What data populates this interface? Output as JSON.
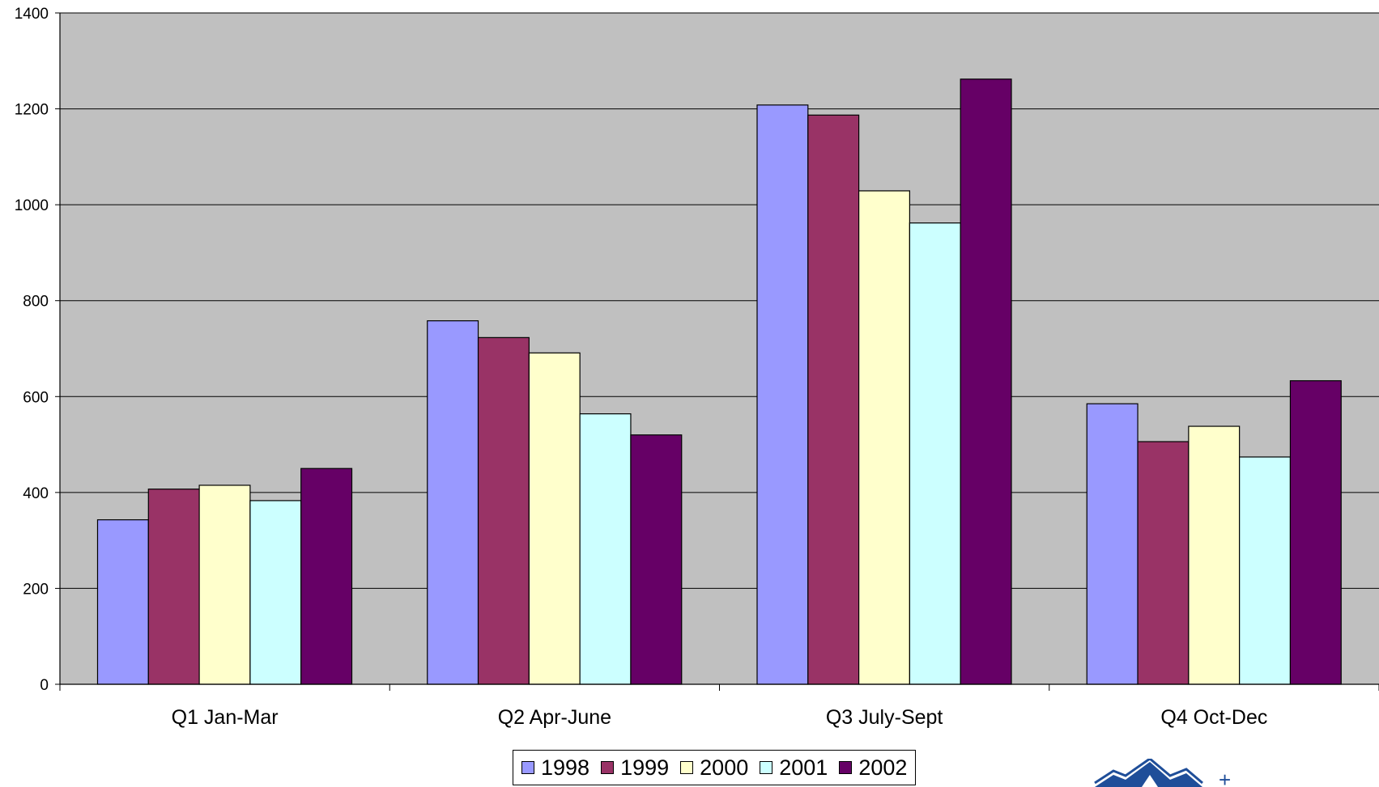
{
  "chart_data": {
    "type": "bar",
    "categories": [
      "Q1 Jan-Mar",
      "Q2 Apr-June",
      "Q3 July-Sept",
      "Q4 Oct-Dec"
    ],
    "series": [
      {
        "name": "1998",
        "color": "#9999ff",
        "values": [
          343,
          758,
          1208,
          585
        ]
      },
      {
        "name": "1999",
        "color": "#993366",
        "values": [
          407,
          723,
          1187,
          506
        ]
      },
      {
        "name": "2000",
        "color": "#ffffcc",
        "values": [
          415,
          691,
          1029,
          538
        ]
      },
      {
        "name": "2001",
        "color": "#ccffff",
        "values": [
          383,
          564,
          962,
          474
        ]
      },
      {
        "name": "2002",
        "color": "#660066",
        "values": [
          450,
          520,
          1262,
          633
        ]
      }
    ],
    "ylim": [
      0,
      1400
    ],
    "yticks": [
      0,
      200,
      400,
      600,
      800,
      1000,
      1200,
      1400
    ],
    "grid": true,
    "plot_background": "#c0c0c0",
    "legend_position": "bottom-center",
    "title": "",
    "xlabel": "",
    "ylabel": ""
  }
}
